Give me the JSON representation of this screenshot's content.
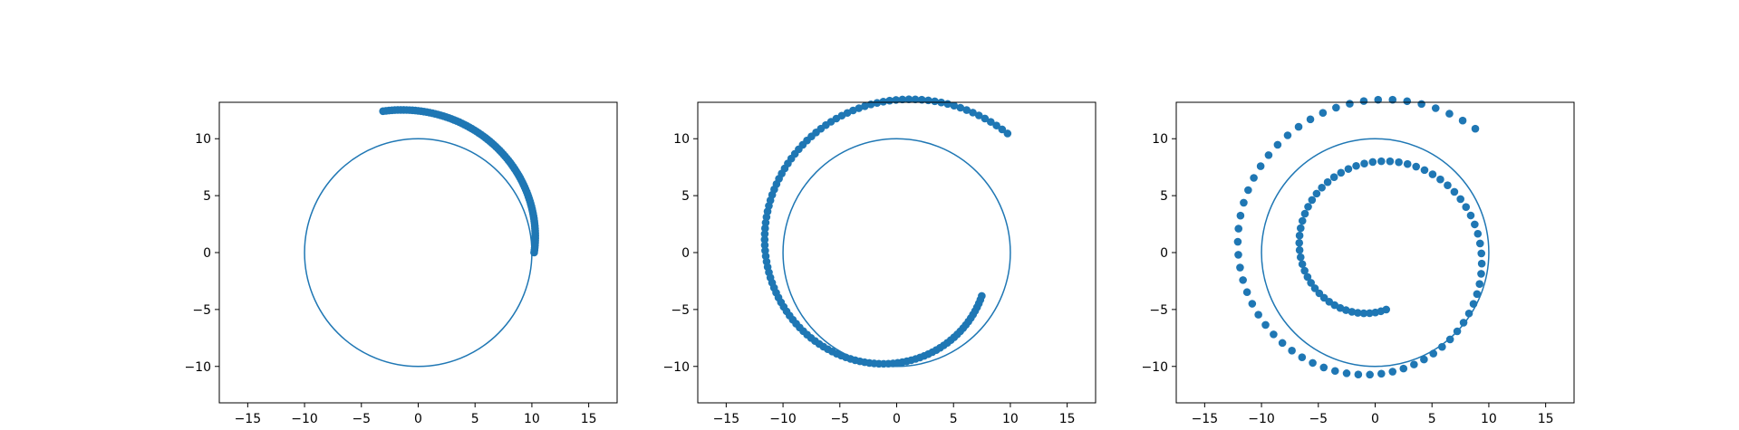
{
  "chart_data": [
    {
      "type": "scatter",
      "title": "",
      "xlabel": "",
      "ylabel": "",
      "xlim": [
        -17.5,
        17.5
      ],
      "ylim": [
        -13.2,
        13.2
      ],
      "xticks": [
        -15,
        -10,
        -5,
        0,
        5,
        10,
        15
      ],
      "yticks": [
        -10,
        -5,
        0,
        5,
        10
      ],
      "xtick_labels": [
        "−15",
        "−10",
        "−5",
        "0",
        "5",
        "10",
        "15"
      ],
      "ytick_labels": [
        "−10",
        "−5",
        "0",
        "5",
        "10"
      ],
      "grid": false,
      "reference_circle": {
        "center": [
          0,
          0
        ],
        "radius": 10
      },
      "spiral": {
        "center": [
          0,
          0
        ],
        "r_start": 10.2,
        "r_end": 12.8,
        "angle_start_deg": 0,
        "angle_end_deg": 104,
        "points": 90
      },
      "color": "#1f77b4"
    },
    {
      "type": "scatter",
      "title": "",
      "xlabel": "",
      "ylabel": "",
      "xlim": [
        -17.5,
        17.5
      ],
      "ylim": [
        -13.2,
        13.2
      ],
      "xticks": [
        -15,
        -10,
        -5,
        0,
        5,
        10,
        15
      ],
      "yticks": [
        -10,
        -5,
        0,
        5,
        10
      ],
      "xtick_labels": [
        "−15",
        "−10",
        "−5",
        "0",
        "5",
        "10",
        "15"
      ],
      "ytick_labels": [
        "−10",
        "−5",
        "0",
        "5",
        "10"
      ],
      "grid": false,
      "reference_circle": {
        "center": [
          0,
          0
        ],
        "radius": 10
      },
      "spiral": {
        "center": [
          0,
          0
        ],
        "r_start": 14.3,
        "r_end": 8.4,
        "angle_start_deg": 47,
        "angle_end_deg": 333,
        "points": 120
      },
      "color": "#1f77b4"
    },
    {
      "type": "scatter",
      "title": "",
      "xlabel": "",
      "ylabel": "",
      "xlim": [
        -17.5,
        17.5
      ],
      "ylim": [
        -13.2,
        13.2
      ],
      "xticks": [
        -15,
        -10,
        -5,
        0,
        5,
        10,
        15
      ],
      "yticks": [
        -10,
        -5,
        0,
        5,
        10
      ],
      "xtick_labels": [
        "−15",
        "−10",
        "−5",
        "0",
        "5",
        "10",
        "15"
      ],
      "ytick_labels": [
        "−10",
        "−5",
        "0",
        "5",
        "10"
      ],
      "grid": false,
      "reference_circle": {
        "center": [
          0,
          0
        ],
        "radius": 10
      },
      "spiral": {
        "center": [
          0,
          0
        ],
        "r_start": 14.0,
        "r_end": 5.1,
        "angle_start_deg": 51,
        "angle_end_deg": 641,
        "points": 110
      },
      "color": "#1f77b4"
    }
  ]
}
